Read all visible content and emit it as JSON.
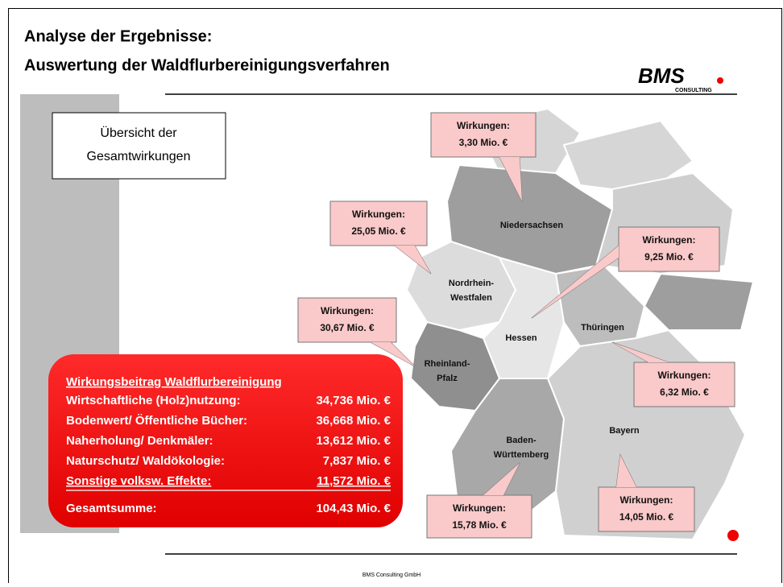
{
  "header": {
    "title_line1": "Analyse der Ergebnisse:",
    "title_line2": "Auswertung der Waldflurbereinigungsverfahren",
    "logo": "BMS",
    "logo_sub": "CONSULTING"
  },
  "overview": {
    "lines": [
      "Übersicht der",
      "Gesamtwirkungen"
    ]
  },
  "regions": [
    {
      "lines": [
        "Niedersachsen"
      ]
    },
    {
      "lines": [
        "Nordrhein-",
        "Westfalen"
      ]
    },
    {
      "lines": [
        "Hessen"
      ]
    },
    {
      "lines": [
        "Thüringen"
      ]
    },
    {
      "lines": [
        "Rheinland-",
        "Pfalz"
      ]
    },
    {
      "lines": [
        "Baden-",
        "Württemberg"
      ]
    },
    {
      "lines": [
        "Bayern"
      ]
    }
  ],
  "callouts": [
    {
      "label": "Wirkungen:",
      "value": "3,30 Mio. €"
    },
    {
      "label": "Wirkungen:",
      "value": "25,05 Mio. €"
    },
    {
      "label": "Wirkungen:",
      "value": "9,25 Mio. €"
    },
    {
      "label": "Wirkungen:",
      "value": "30,67 Mio. €"
    },
    {
      "label": "Wirkungen:",
      "value": "6,32 Mio. €"
    },
    {
      "label": "Wirkungen:",
      "value": "15,78 Mio. €"
    },
    {
      "label": "Wirkungen:",
      "value": "14,05 Mio. €"
    }
  ],
  "summary": {
    "title": "Wirkungsbeitrag Waldflurbereinigung",
    "rows": [
      [
        "Wirtschaftliche (Holz)nutzung:",
        "34,736 Mio. €"
      ],
      [
        "Bodenwert/ Öffentliche Bücher:",
        "36,668 Mio. €"
      ],
      [
        "Naherholung/ Denkmäler:",
        "13,612 Mio. €"
      ],
      [
        "Naturschutz/ Waldökologie:",
        "7,837 Mio. €"
      ],
      [
        "Sonstige volksw. Effekte:",
        "11,572 Mio. €"
      ]
    ],
    "total": [
      "Gesamtsumme:",
      "104,43 Mio. €"
    ]
  },
  "footer": "BMS Consulting GmbH"
}
